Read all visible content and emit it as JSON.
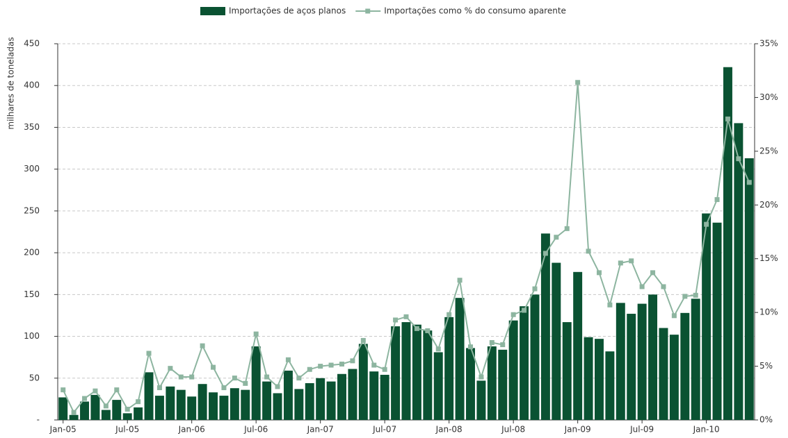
{
  "chart_data": {
    "type": "bar-line",
    "y_label": "milhares de toneladas",
    "categories": [
      "Jan-05",
      null,
      null,
      null,
      null,
      null,
      "Jul-05",
      null,
      null,
      null,
      null,
      null,
      "Jan-06",
      null,
      null,
      null,
      null,
      null,
      "Jul-06",
      null,
      null,
      null,
      null,
      null,
      "Jan-07",
      null,
      null,
      null,
      null,
      null,
      "Jul-07",
      null,
      null,
      null,
      null,
      null,
      "Jan-08",
      null,
      null,
      null,
      null,
      null,
      "Jul-08",
      null,
      null,
      null,
      null,
      null,
      "Jan-09",
      null,
      null,
      null,
      null,
      null,
      "Jul-09",
      null,
      null,
      null,
      null,
      null,
      "Jan-10",
      null,
      null,
      null,
      null
    ],
    "series": [
      {
        "name": "Importações de aços planos",
        "type": "bar",
        "color": "#0a5232",
        "values": [
          27,
          6,
          22,
          30,
          12,
          24,
          8,
          15,
          57,
          29,
          40,
          36,
          28,
          43,
          33,
          29,
          38,
          36,
          88,
          46,
          32,
          59,
          37,
          44,
          50,
          46,
          55,
          61,
          91,
          58,
          54,
          112,
          117,
          114,
          107,
          81,
          123,
          146,
          86,
          47,
          88,
          84,
          119,
          136,
          150,
          223,
          188,
          117,
          177,
          99,
          97,
          82,
          140,
          127,
          139,
          150,
          110,
          102,
          128,
          145,
          247,
          236,
          422,
          355,
          313
        ]
      },
      {
        "name": "Importações como % do consumo aparente",
        "type": "line",
        "axis": "y2",
        "color": "#8db5a0",
        "values": [
          2.8,
          0.7,
          2.0,
          2.7,
          1.3,
          2.8,
          1.0,
          1.7,
          6.2,
          3.0,
          4.8,
          4.0,
          4.0,
          6.9,
          4.9,
          3.0,
          3.9,
          3.4,
          8.0,
          4.0,
          3.1,
          5.6,
          3.9,
          4.7,
          5.0,
          5.1,
          5.2,
          5.5,
          7.4,
          5.1,
          4.7,
          9.3,
          9.6,
          8.5,
          8.3,
          6.6,
          9.8,
          13.0,
          6.8,
          4.0,
          7.2,
          7.0,
          9.8,
          10.2,
          12.2,
          15.5,
          17.0,
          17.8,
          31.4,
          15.7,
          13.7,
          10.7,
          14.6,
          14.8,
          12.4,
          13.7,
          12.4,
          9.7,
          11.5,
          11.6,
          18.2,
          20.5,
          28.0,
          24.3,
          22.1
        ]
      }
    ],
    "ylim": [
      0,
      450
    ],
    "yticks": [
      {
        "value": 0,
        "label": "-"
      },
      50,
      100,
      150,
      200,
      250,
      300,
      350,
      400,
      450
    ],
    "y2lim": [
      0,
      35
    ],
    "y2ticks": [
      {
        "value": 0,
        "label": "0%"
      },
      {
        "value": 5,
        "label": "5%"
      },
      {
        "value": 10,
        "label": "10%"
      },
      {
        "value": 15,
        "label": "15%"
      },
      {
        "value": 20,
        "label": "20%"
      },
      {
        "value": 25,
        "label": "25%"
      },
      {
        "value": 30,
        "label": "30%"
      },
      {
        "value": 35,
        "label": "35%"
      }
    ],
    "grid": true,
    "legend": "top"
  }
}
